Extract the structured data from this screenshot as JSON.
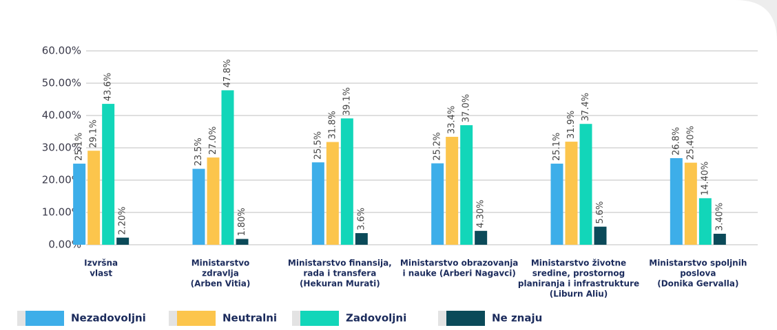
{
  "chart_data": {
    "type": "bar",
    "categories": [
      [
        "Izvršna",
        "vlast"
      ],
      [
        "Ministarstvo",
        "zdravlja",
        "(Arben Vitia)"
      ],
      [
        "Ministarstvo finansija,",
        "rada i transfera",
        "(Hekuran Murati)"
      ],
      [
        "Ministarstvo obrazovanja",
        "i nauke (Arberi Nagavci)"
      ],
      [
        "Ministarstvo životne",
        "sredine, prostornog",
        "planiranja i infrastrukture",
        "(Liburn Aliu)"
      ],
      [
        "Ministarstvo spoljnih",
        "poslova",
        "(Donika Gervalla)"
      ]
    ],
    "series": [
      {
        "name": "Nezadovoljni",
        "color": "#3daee9",
        "values": [
          25.1,
          23.5,
          25.5,
          25.2,
          25.1,
          26.8
        ],
        "value_labels": [
          "25.1%",
          "23.5%",
          "25.5%",
          "25.2%",
          "25.1%",
          "26.8%"
        ]
      },
      {
        "name": "Neutralni",
        "color": "#fcc54c",
        "values": [
          29.1,
          27.0,
          31.8,
          33.4,
          31.9,
          25.4
        ],
        "value_labels": [
          "29.1%",
          "27.0%",
          "31.8%",
          "33.4%",
          "31.9%",
          "25.40%"
        ]
      },
      {
        "name": "Zadovoljni",
        "color": "#12d6b9",
        "values": [
          43.6,
          47.8,
          39.1,
          37.0,
          37.4,
          14.4
        ],
        "value_labels": [
          "43.6%",
          "47.8%",
          "39.1%",
          "37.0%",
          "37.4%",
          "14.40%"
        ]
      },
      {
        "name": "Ne znaju",
        "color": "#0b4a59",
        "values": [
          2.2,
          1.8,
          3.6,
          4.3,
          5.6,
          3.4
        ],
        "value_labels": [
          "2.20%",
          "1.80%",
          "3.6%",
          "4.30%",
          "5.6%",
          "3.40%"
        ]
      }
    ],
    "ylim": [
      0,
      60
    ],
    "yticks": [
      {
        "value": 0,
        "label": "0.00%"
      },
      {
        "value": 10,
        "label": "10.00%"
      },
      {
        "value": 20,
        "label": "20.00%"
      },
      {
        "value": 30,
        "label": "30.00%"
      },
      {
        "value": 40,
        "label": "40.00%"
      },
      {
        "value": 50,
        "label": "50.00%"
      },
      {
        "value": 60,
        "label": "60.00%"
      }
    ],
    "grid": true,
    "legend": "bottom"
  }
}
